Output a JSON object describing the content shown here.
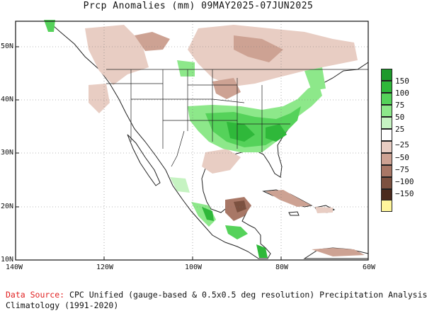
{
  "title": "Prcp Anomalies (mm) 09MAY2025-07JUN2025",
  "lat_labels": [
    "50N",
    "40N",
    "30N",
    "20N",
    "10N"
  ],
  "lon_labels": [
    "140W",
    "120W",
    "100W",
    "80W",
    "60W"
  ],
  "legend": {
    "levels": [
      "150",
      "100",
      "75",
      "50",
      "25",
      "−25",
      "−50",
      "−75",
      "−100",
      "−150"
    ],
    "colors": [
      "#1e9a2c",
      "#2fb83a",
      "#55d25a",
      "#8de88a",
      "#c6f3c2",
      "#ffffff",
      "#e8cdc3",
      "#cda293",
      "#a87766",
      "#7c5140",
      "#4b2b1e",
      "#fff59c"
    ]
  },
  "footer": {
    "source_label": "Data Source:",
    "source_text": "CPC Unified (gauge-based & 0.5x0.5 deg resolution) Precipitation Analysis",
    "climatology": "Climatology (1991-2020)"
  }
}
